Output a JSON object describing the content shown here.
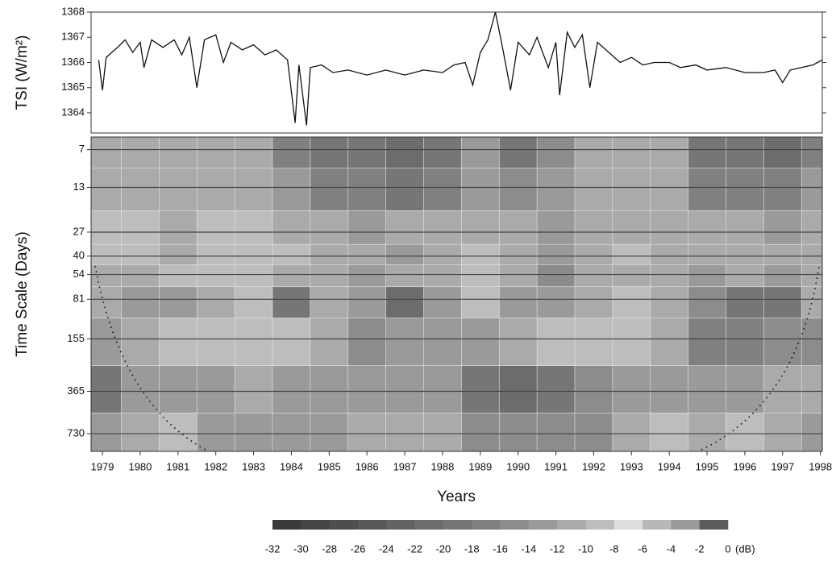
{
  "chart_data": [
    {
      "type": "line",
      "ylabel": "TSI (W/m²)",
      "xlim": [
        1978.7,
        1998.05
      ],
      "ylim": [
        1363.2,
        1368
      ],
      "yticks": [
        1364,
        1365,
        1366,
        1367,
        1368
      ],
      "color": "#111111",
      "x": [
        1978.9,
        1979.0,
        1979.1,
        1979.4,
        1979.6,
        1979.8,
        1980.0,
        1980.1,
        1980.3,
        1980.6,
        1980.9,
        1981.1,
        1981.3,
        1981.5,
        1981.7,
        1982.0,
        1982.2,
        1982.4,
        1982.7,
        1983.0,
        1983.3,
        1983.6,
        1983.9,
        1984.1,
        1984.2,
        1984.4,
        1984.5,
        1984.8,
        1985.1,
        1985.5,
        1986.0,
        1986.5,
        1987.0,
        1987.5,
        1988.0,
        1988.3,
        1988.6,
        1988.8,
        1989.0,
        1989.2,
        1989.4,
        1989.6,
        1989.8,
        1990.0,
        1990.3,
        1990.5,
        1990.8,
        1991.0,
        1991.1,
        1991.3,
        1991.5,
        1991.7,
        1991.9,
        1992.1,
        1992.4,
        1992.7,
        1993.0,
        1993.3,
        1993.6,
        1994.0,
        1994.3,
        1994.7,
        1995.0,
        1995.5,
        1996.0,
        1996.5,
        1996.8,
        1997.0,
        1997.2,
        1997.5,
        1997.8,
        1998.05
      ],
      "values": [
        1366.1,
        1364.9,
        1366.2,
        1366.6,
        1366.9,
        1366.4,
        1366.8,
        1365.8,
        1366.9,
        1366.6,
        1366.9,
        1366.3,
        1367.0,
        1365.0,
        1366.9,
        1367.1,
        1366.0,
        1366.8,
        1366.5,
        1366.7,
        1366.3,
        1366.5,
        1366.1,
        1363.6,
        1365.9,
        1363.5,
        1365.8,
        1365.9,
        1365.6,
        1365.7,
        1365.5,
        1365.7,
        1365.5,
        1365.7,
        1365.6,
        1365.9,
        1366.0,
        1365.1,
        1366.4,
        1366.9,
        1368.0,
        1366.5,
        1364.9,
        1366.8,
        1366.3,
        1367.0,
        1365.8,
        1366.8,
        1364.7,
        1367.2,
        1366.6,
        1367.1,
        1365.0,
        1366.8,
        1366.4,
        1366.0,
        1366.2,
        1365.9,
        1366.0,
        1366.0,
        1365.8,
        1365.9,
        1365.7,
        1365.8,
        1365.6,
        1365.6,
        1365.7,
        1365.2,
        1365.7,
        1365.8,
        1365.9,
        1366.1
      ]
    },
    {
      "type": "heatmap",
      "xlabel": "Years",
      "ylabel": "Time Scale (Days)",
      "log_scale": true,
      "y_reversed": true,
      "grid": true,
      "xlim": [
        1978.7,
        1998.05
      ],
      "xticks": [
        1979,
        1980,
        1981,
        1982,
        1983,
        1984,
        1985,
        1986,
        1987,
        1988,
        1989,
        1990,
        1991,
        1992,
        1993,
        1994,
        1995,
        1996,
        1997,
        1998
      ],
      "ylim": [
        5.7,
        975
      ],
      "yticks": [
        7,
        13,
        27,
        40,
        54,
        81,
        155,
        365,
        730
      ],
      "xbins": [
        1978.7,
        1979.5,
        1980.5,
        1981.5,
        1982.5,
        1983.5,
        1984.5,
        1985.5,
        1986.5,
        1987.5,
        1988.5,
        1989.5,
        1990.5,
        1991.5,
        1992.5,
        1993.5,
        1994.5,
        1995.5,
        1996.5,
        1997.5,
        1998.05
      ],
      "ybins": [
        5.7,
        9.5,
        19,
        33,
        46,
        66,
        110,
        240,
        520,
        975
      ],
      "z": [
        [
          -11,
          -11,
          -11,
          -12,
          -12,
          -18,
          -20,
          -20,
          -22,
          -20,
          -14,
          -20,
          -16,
          -12,
          -12,
          -12,
          -20,
          -20,
          -22,
          -18
        ],
        [
          -11,
          -11,
          -11,
          -11,
          -12,
          -14,
          -18,
          -18,
          -20,
          -18,
          -14,
          -16,
          -14,
          -12,
          -11,
          -12,
          -18,
          -18,
          -18,
          -14
        ],
        [
          -10,
          -10,
          -11,
          -9,
          -10,
          -12,
          -12,
          -14,
          -12,
          -12,
          -11,
          -12,
          -14,
          -12,
          -11,
          -11,
          -12,
          -12,
          -14,
          -12
        ],
        [
          -9,
          -9,
          -12,
          -10,
          -9,
          -10,
          -11,
          -12,
          -14,
          -11,
          -10,
          -12,
          -14,
          -11,
          -10,
          -12,
          -12,
          -11,
          -12,
          -12
        ],
        [
          -12,
          -12,
          -10,
          -9,
          -10,
          -12,
          -12,
          -14,
          -12,
          -11,
          -10,
          -12,
          -16,
          -12,
          -11,
          -12,
          -14,
          -12,
          -14,
          -11
        ],
        [
          -12,
          -13,
          -14,
          -12,
          -10,
          -20,
          -12,
          -14,
          -22,
          -14,
          -10,
          -14,
          -14,
          -12,
          -10,
          -12,
          -16,
          -20,
          -20,
          -12
        ],
        [
          -14,
          -12,
          -10,
          -9,
          -10,
          -10,
          -12,
          -16,
          -14,
          -13,
          -14,
          -12,
          -10,
          -10,
          -9,
          -12,
          -18,
          -18,
          -16,
          -16
        ],
        [
          -20,
          -14,
          -14,
          -13,
          -12,
          -14,
          -14,
          -13,
          -13,
          -14,
          -20,
          -22,
          -20,
          -16,
          -14,
          -13,
          -14,
          -13,
          -12,
          -12
        ],
        [
          -14,
          -12,
          -10,
          -13,
          -14,
          -14,
          -13,
          -12,
          -12,
          -12,
          -16,
          -16,
          -16,
          -16,
          -12,
          -10,
          -11,
          -10,
          -12,
          -14
        ]
      ],
      "colorbar": {
        "ticks": [
          -32,
          -30,
          -28,
          -26,
          -24,
          -22,
          -20,
          -18,
          -16,
          -14,
          -12,
          -10,
          -8,
          -6,
          -4,
          -2,
          0
        ],
        "unit": "(dB)",
        "colors": [
          "#3a3a3a",
          "#444444",
          "#4e4e4e",
          "#585858",
          "#626262",
          "#6c6c6c",
          "#767676",
          "#808080",
          "#8c8c8c",
          "#9a9a9a",
          "#aaaaaa",
          "#bdbdbd",
          "#dedede",
          "#b8b8b8",
          "#9a9a9a",
          "#5c5c5c"
        ]
      }
    }
  ]
}
